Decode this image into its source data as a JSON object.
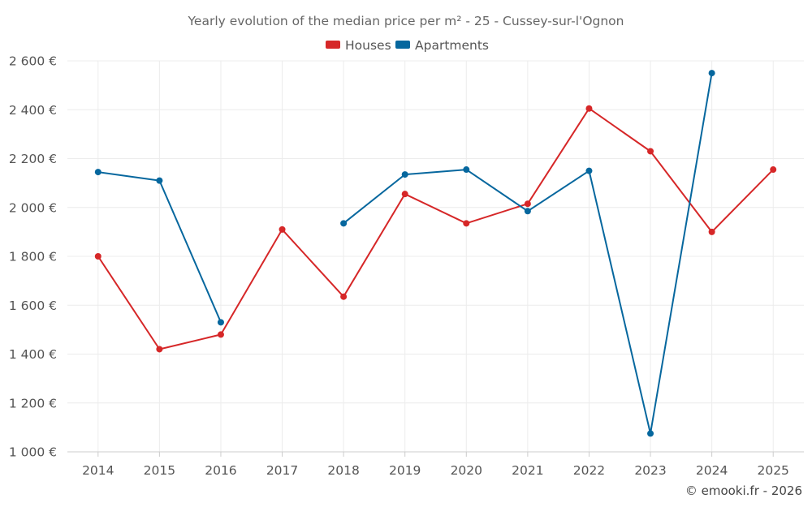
{
  "chart_data": {
    "type": "line",
    "title": "Yearly evolution of the median price per m² - 25 - Cussey-sur-l'Ognon",
    "categories": [
      "2014",
      "2015",
      "2016",
      "2017",
      "2018",
      "2019",
      "2020",
      "2021",
      "2022",
      "2023",
      "2024",
      "2025"
    ],
    "series": [
      {
        "name": "Houses",
        "color": "#d62728",
        "values": [
          1800,
          1420,
          1480,
          1910,
          1635,
          2055,
          1935,
          2015,
          2405,
          2230,
          1900,
          2155
        ]
      },
      {
        "name": "Apartments",
        "color": "#06679e",
        "values": [
          2145,
          2110,
          1530,
          null,
          1935,
          2135,
          2155,
          1985,
          2150,
          1075,
          2550,
          null
        ]
      }
    ],
    "yticks": [
      1000,
      1200,
      1400,
      1600,
      1800,
      2000,
      2200,
      2400,
      2600
    ],
    "ytick_labels": [
      "1 000 €",
      "1 200 €",
      "1 400 €",
      "1 600 €",
      "1 800 €",
      "2 000 €",
      "2 200 €",
      "2 400 €",
      "2 600 €"
    ],
    "ylim": [
      1000,
      2600
    ],
    "xlabel": "",
    "ylabel": "",
    "legend_position": "top-center",
    "grid": true
  },
  "credit": "© emooki.fr - 2026"
}
